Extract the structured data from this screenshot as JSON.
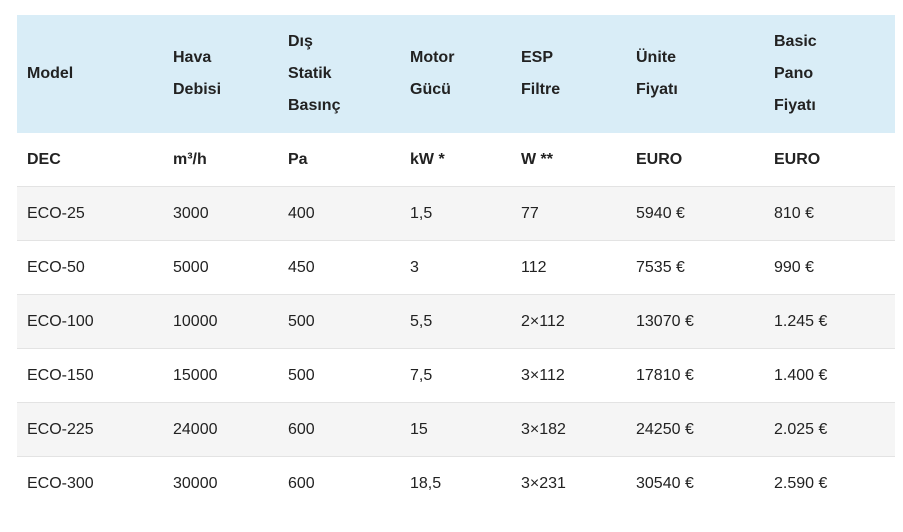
{
  "table": {
    "header": [
      "Model",
      "Hava\nDebisi",
      "Dış\nStatik\nBasınç",
      "Motor\nGücü",
      "ESP\nFiltre",
      "Ünite\nFiyatı",
      "Basic\nPano\nFiyatı"
    ],
    "units": [
      "DEC",
      "m³/h",
      "Pa",
      "kW *",
      "W **",
      "EURO",
      "EURO"
    ],
    "rows": [
      [
        "ECO-25",
        "3000",
        "400",
        "1,5",
        "77",
        "5940 €",
        "810 €"
      ],
      [
        "ECO-50",
        "5000",
        "450",
        "3",
        "112",
        "7535 €",
        "990 €"
      ],
      [
        "ECO-100",
        "10000",
        "500",
        "5,5",
        "2×112",
        "13070 €",
        "1.245 €"
      ],
      [
        "ECO-150",
        "15000",
        "500",
        "7,5",
        "3×112",
        "17810 €",
        "1.400 €"
      ],
      [
        "ECO-225",
        "24000",
        "600",
        "15",
        "3×182",
        "24250 €",
        "2.025 €"
      ],
      [
        "ECO-300",
        "30000",
        "600",
        "18,5",
        "3×231",
        "30540 €",
        "2.590 €"
      ]
    ]
  },
  "colors": {
    "header_bg": "#d9edf7",
    "stripe_bg": "#f5f5f5",
    "row_border": "#e3e3e3",
    "text": "#222222"
  }
}
